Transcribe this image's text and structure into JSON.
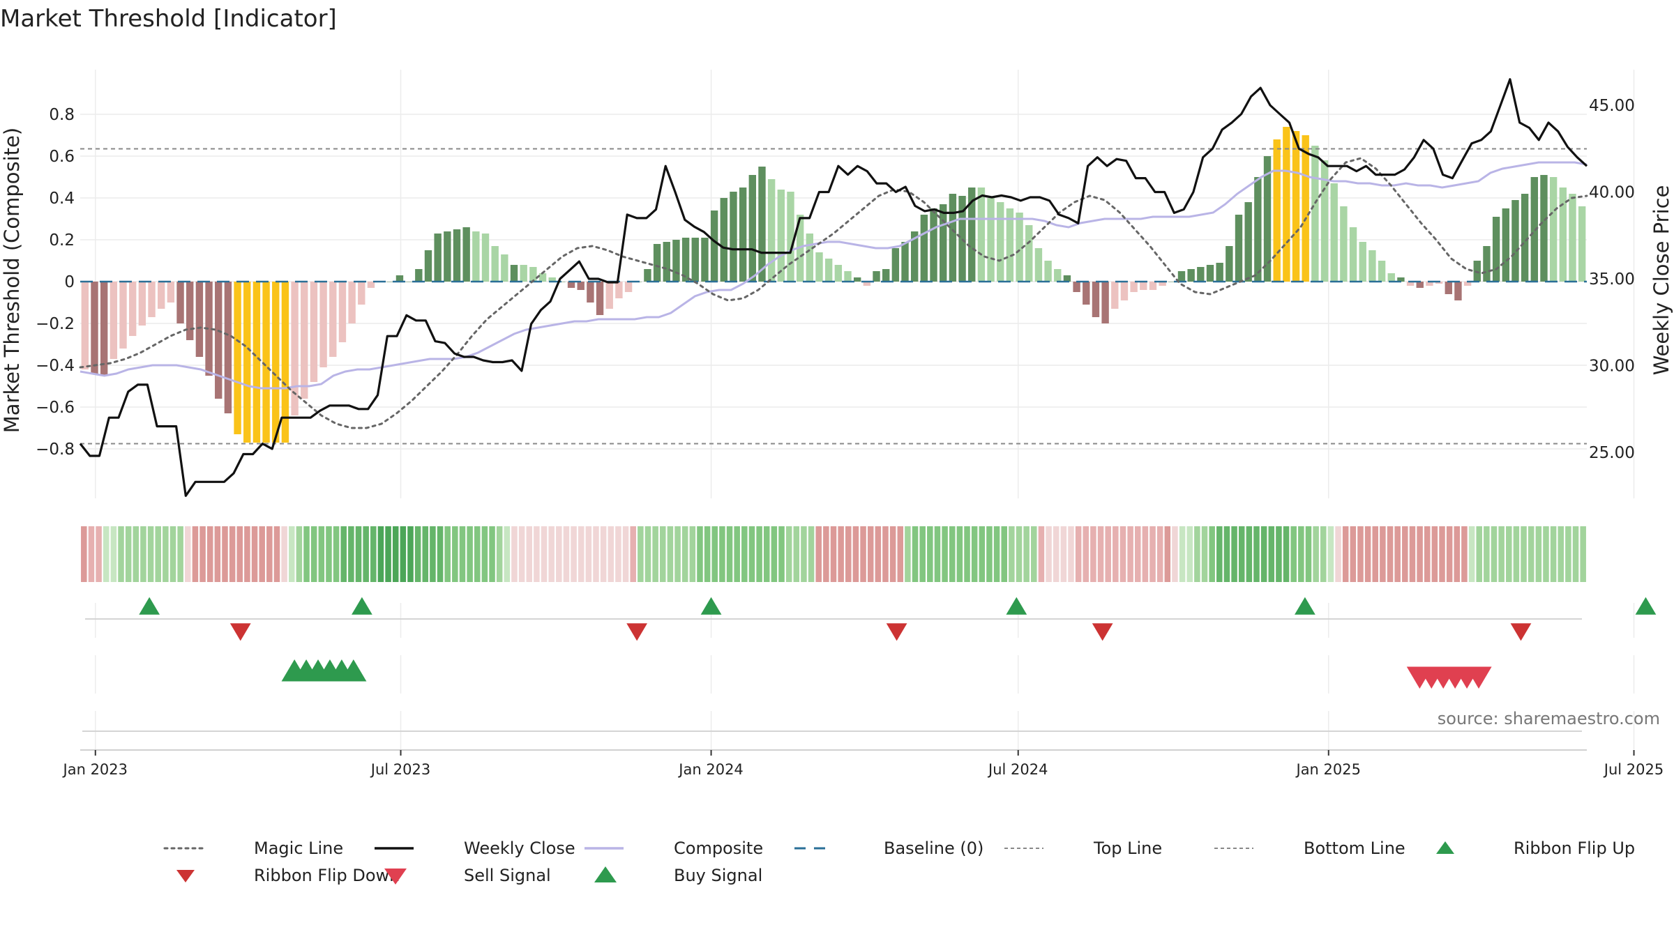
{
  "chart_data": {
    "type": "bar",
    "title": "Market Threshold [Indicator]",
    "ylabel_left": "Market Threshold (Composite)",
    "ylabel_right": "Weekly Close Price",
    "source": "source: sharemaestro.com",
    "x_start": "2022-12-23",
    "x_end": "2025-10-03",
    "ylim_left": [
      -0.85,
      0.8
    ],
    "ylim_right": [
      22.2,
      47.5
    ],
    "left_ticks": [
      {
        "v": 0.8,
        "t": "0.8"
      },
      {
        "v": 0.6,
        "t": "0.6"
      },
      {
        "v": 0.4,
        "t": "0.4"
      },
      {
        "v": 0.2,
        "t": "0.2"
      },
      {
        "v": 0,
        "t": "0"
      },
      {
        "v": -0.2,
        "t": "−0.2"
      },
      {
        "v": -0.4,
        "t": "−0.4"
      },
      {
        "v": -0.6,
        "t": "−0.6"
      },
      {
        "v": -0.8,
        "t": "−0.8"
      }
    ],
    "right_ticks": [
      {
        "v": 45,
        "t": "45.00"
      },
      {
        "v": 40,
        "t": "40.00"
      },
      {
        "v": 35,
        "t": "35.00"
      },
      {
        "v": 30,
        "t": "30.00"
      },
      {
        "v": 25,
        "t": "25.00"
      }
    ],
    "x_ticks": [
      {
        "date": "2023-01-01",
        "t": "Jan 2023"
      },
      {
        "date": "2023-07-01",
        "t": "Jul 2023"
      },
      {
        "date": "2024-01-01",
        "t": "Jan 2024"
      },
      {
        "date": "2024-07-01",
        "t": "Jul 2024"
      },
      {
        "date": "2025-01-01",
        "t": "Jan 2025"
      },
      {
        "date": "2025-07-01",
        "t": "Jul 2025"
      }
    ],
    "top_line": 0.635,
    "bottom_line": -0.775,
    "composite": [
      -0.43,
      -0.44,
      -0.45,
      -0.44,
      -0.42,
      -0.41,
      -0.4,
      -0.4,
      -0.4,
      -0.41,
      -0.42,
      -0.44,
      -0.46,
      -0.48,
      -0.5,
      -0.51,
      -0.51,
      -0.51,
      -0.5,
      -0.5,
      -0.49,
      -0.45,
      -0.43,
      -0.42,
      -0.42,
      -0.41,
      -0.4,
      -0.39,
      -0.38,
      -0.37,
      -0.37,
      -0.37,
      -0.36,
      -0.34,
      -0.31,
      -0.28,
      -0.25,
      -0.23,
      -0.22,
      -0.21,
      -0.2,
      -0.19,
      -0.19,
      -0.18,
      -0.18,
      -0.18,
      -0.18,
      -0.17,
      -0.17,
      -0.15,
      -0.11,
      -0.07,
      -0.05,
      -0.04,
      -0.04,
      -0.01,
      0.03,
      0.08,
      0.12,
      0.15,
      0.17,
      0.18,
      0.19,
      0.19,
      0.18,
      0.17,
      0.16,
      0.16,
      0.17,
      0.2,
      0.23,
      0.26,
      0.28,
      0.3,
      0.3,
      0.3,
      0.3,
      0.3,
      0.3,
      0.3,
      0.29,
      0.27,
      0.26,
      0.28,
      0.29,
      0.3,
      0.3,
      0.3,
      0.3,
      0.31,
      0.31,
      0.31,
      0.31,
      0.32,
      0.33,
      0.37,
      0.42,
      0.46,
      0.5,
      0.53,
      0.53,
      0.52,
      0.5,
      0.49,
      0.48,
      0.48,
      0.47,
      0.47,
      0.46,
      0.46,
      0.47,
      0.46,
      0.46,
      0.45,
      0.46,
      0.47,
      0.48,
      0.52,
      0.54,
      0.55,
      0.56,
      0.57,
      0.57,
      0.57,
      0.57,
      0.56
    ],
    "weekly_close": [
      25.5,
      24.8,
      24.8,
      27.0,
      27.0,
      28.5,
      28.9,
      28.9,
      26.5,
      26.5,
      26.5,
      22.5,
      23.3,
      23.3,
      23.3,
      23.3,
      23.8,
      24.9,
      24.9,
      25.5,
      25.2,
      27.0,
      27.0,
      27.0,
      27.0,
      27.4,
      27.7,
      27.7,
      27.7,
      27.5,
      27.5,
      28.3,
      31.7,
      31.7,
      32.9,
      32.6,
      32.6,
      31.4,
      31.3,
      30.7,
      30.5,
      30.5,
      30.3,
      30.2,
      30.2,
      30.3,
      29.7,
      32.4,
      33.2,
      33.7,
      35.0,
      35.5,
      36.0,
      35.0,
      35.0,
      34.8,
      34.8,
      38.7,
      38.5,
      38.5,
      39.0,
      41.5,
      40.0,
      38.4,
      38.0,
      37.7,
      37.2,
      36.8,
      36.7,
      36.7,
      36.7,
      36.5,
      36.5,
      36.5,
      36.5,
      38.5,
      38.5,
      40.0,
      40.0,
      41.5,
      41.0,
      41.5,
      41.2,
      40.5,
      40.5,
      40.0,
      40.3,
      39.2,
      38.9,
      39.0,
      38.8,
      38.8,
      38.9,
      39.5,
      39.8,
      39.7,
      39.8,
      39.7,
      39.5,
      39.7,
      39.7,
      39.5,
      38.7,
      38.5,
      38.2,
      41.5,
      42.0,
      41.5,
      41.9,
      41.8,
      40.8,
      40.8,
      40.0,
      40.0,
      38.8,
      39.0,
      40.0,
      42.0,
      42.5,
      43.6,
      44.0,
      44.5,
      45.5,
      46.0,
      45.0,
      44.5,
      44.0,
      42.5,
      42.2,
      42.0,
      41.5,
      41.5,
      41.5,
      41.2,
      41.5,
      41.0,
      41.0,
      41.0,
      41.3,
      42.0,
      43.0,
      42.5,
      41.0,
      40.8,
      41.8,
      42.8,
      43.0,
      43.5,
      45.0,
      46.5,
      44.0,
      43.7,
      43.0,
      44.0,
      43.5,
      42.6,
      42.0,
      41.5
    ],
    "close_ylim": [
      22.2,
      47.5
    ],
    "magic_line": [
      -0.41,
      -0.4,
      -0.39,
      -0.37,
      -0.34,
      -0.3,
      -0.26,
      -0.23,
      -0.22,
      -0.23,
      -0.26,
      -0.31,
      -0.38,
      -0.45,
      -0.52,
      -0.58,
      -0.64,
      -0.68,
      -0.7,
      -0.7,
      -0.68,
      -0.63,
      -0.57,
      -0.5,
      -0.43,
      -0.35,
      -0.26,
      -0.18,
      -0.12,
      -0.06,
      0.0,
      0.06,
      0.12,
      0.16,
      0.17,
      0.15,
      0.12,
      0.1,
      0.08,
      0.06,
      0.03,
      -0.01,
      -0.06,
      -0.09,
      -0.08,
      -0.04,
      0.02,
      0.08,
      0.13,
      0.18,
      0.23,
      0.29,
      0.35,
      0.41,
      0.44,
      0.43,
      0.38,
      0.31,
      0.24,
      0.17,
      0.12,
      0.1,
      0.13,
      0.19,
      0.26,
      0.33,
      0.38,
      0.41,
      0.39,
      0.33,
      0.25,
      0.17,
      0.08,
      -0.01,
      -0.05,
      -0.06,
      -0.03,
      0.0,
      0.03,
      0.1,
      0.18,
      0.26,
      0.38,
      0.49,
      0.57,
      0.59,
      0.54,
      0.46,
      0.37,
      0.28,
      0.2,
      0.11,
      0.06,
      0.04,
      0.06,
      0.12,
      0.2,
      0.28,
      0.35,
      0.4,
      0.41
    ],
    "bars": [
      -0.42,
      -0.44,
      -0.45,
      -0.37,
      -0.32,
      -0.26,
      -0.21,
      -0.17,
      -0.13,
      -0.1,
      -0.2,
      -0.28,
      -0.36,
      -0.45,
      -0.56,
      -0.63,
      -0.73,
      -0.77,
      -0.77,
      -0.77,
      -0.77,
      -0.77,
      -0.64,
      -0.56,
      -0.48,
      -0.41,
      -0.36,
      -0.29,
      -0.2,
      -0.11,
      -0.03,
      0.0,
      0.0,
      0.03,
      0.0,
      0.06,
      0.15,
      0.23,
      0.24,
      0.25,
      0.26,
      0.24,
      0.23,
      0.17,
      0.13,
      0.08,
      0.08,
      0.07,
      0.04,
      0.02,
      0.0,
      -0.03,
      -0.04,
      -0.1,
      -0.16,
      -0.13,
      -0.08,
      -0.05,
      0.0,
      0.06,
      0.18,
      0.19,
      0.2,
      0.21,
      0.21,
      0.21,
      0.34,
      0.4,
      0.43,
      0.45,
      0.51,
      0.55,
      0.49,
      0.44,
      0.43,
      0.32,
      0.23,
      0.14,
      0.11,
      0.08,
      0.05,
      0.02,
      -0.02,
      0.05,
      0.06,
      0.16,
      0.19,
      0.24,
      0.32,
      0.35,
      0.37,
      0.42,
      0.41,
      0.45,
      0.45,
      0.4,
      0.38,
      0.35,
      0.33,
      0.27,
      0.16,
      0.1,
      0.06,
      0.03,
      -0.05,
      -0.11,
      -0.17,
      -0.2,
      -0.13,
      -0.09,
      -0.05,
      -0.04,
      -0.04,
      -0.02,
      0.0,
      0.05,
      0.06,
      0.07,
      0.08,
      0.09,
      0.17,
      0.32,
      0.38,
      0.5,
      0.6,
      0.68,
      0.74,
      0.72,
      0.7,
      0.65,
      0.58,
      0.47,
      0.36,
      0.26,
      0.19,
      0.15,
      0.1,
      0.04,
      0.02,
      -0.02,
      -0.03,
      -0.02,
      -0.01,
      -0.06,
      -0.09,
      -0.02,
      0.1,
      0.17,
      0.31,
      0.35,
      0.39,
      0.42,
      0.5,
      0.51,
      0.5,
      0.45,
      0.42,
      0.36
    ],
    "ribbon": [
      -3,
      -2,
      -2,
      1,
      1,
      2,
      2,
      2,
      2,
      2,
      2,
      2,
      2,
      2,
      -1,
      -3,
      -3,
      -3,
      -3,
      -3,
      -3,
      -3,
      -3,
      -3,
      -3,
      -3,
      -3,
      -1,
      1,
      2,
      3,
      3,
      3,
      3,
      3,
      4,
      4,
      4,
      4,
      4,
      5,
      5,
      5,
      5,
      5,
      4,
      4,
      4,
      4,
      3,
      3,
      3,
      3,
      3,
      3,
      3,
      2,
      1,
      -1,
      -1,
      -1,
      -1,
      -1,
      -1,
      -1,
      -1,
      -1,
      -1,
      -1,
      -1,
      -1,
      -1,
      -1,
      -1,
      -2,
      2,
      2,
      2,
      2,
      2,
      2,
      2,
      2,
      3,
      3,
      3,
      3,
      3,
      3,
      3,
      3,
      3,
      3,
      3,
      3,
      2,
      2,
      2,
      2,
      -3,
      -3,
      -3,
      -3,
      -3,
      -3,
      -3,
      -3,
      -3,
      -3,
      -3,
      -3,
      2,
      3,
      3,
      3,
      3,
      3,
      3,
      3,
      3,
      3,
      3,
      3,
      3,
      3,
      2,
      2,
      2,
      2,
      -2,
      -1,
      -1,
      -1,
      -1,
      -2,
      -2,
      -2,
      -2,
      -2,
      -2,
      -2,
      -2,
      -2,
      -2,
      -2,
      -2,
      -3,
      -1,
      1,
      1,
      2,
      2,
      3,
      4,
      4,
      4,
      4,
      4,
      4,
      4,
      4,
      4,
      4,
      3,
      3,
      3,
      2,
      2,
      1,
      -1,
      -3,
      -3,
      -3,
      -3,
      -3,
      -3,
      -3,
      -3,
      -3,
      -3,
      -3,
      -3,
      -3,
      -3,
      -3,
      -3,
      -3,
      1,
      2,
      2,
      2,
      2,
      2,
      2,
      2,
      2,
      2,
      2,
      2,
      2,
      2,
      2,
      2
    ],
    "ribbon_flip_up": [
      "2023-02-02",
      "2023-06-08",
      "2024-01-01",
      "2024-06-30",
      "2024-12-18",
      "2025-07-08"
    ],
    "ribbon_flip_down": [
      "2023-03-28",
      "2023-11-18",
      "2024-04-20",
      "2024-08-20",
      "2025-04-25"
    ],
    "buy_signal": [
      "2023-04-29",
      "2023-05-06",
      "2023-05-13",
      "2023-05-20",
      "2023-05-27",
      "2023-06-03"
    ],
    "sell_signal": [
      "2025-02-24",
      "2025-03-03",
      "2025-03-10",
      "2025-03-17",
      "2025-03-24",
      "2025-03-31"
    ],
    "legend": [
      {
        "key": "magic",
        "label": "Magic Line"
      },
      {
        "key": "close",
        "label": "Weekly Close"
      },
      {
        "key": "composite",
        "label": "Composite"
      },
      {
        "key": "baseline",
        "label": "Baseline (0)"
      },
      {
        "key": "top",
        "label": "Top Line"
      },
      {
        "key": "bottom",
        "label": "Bottom Line"
      },
      {
        "key": "flipup",
        "label": "Ribbon Flip Up"
      },
      {
        "key": "flipdown",
        "label": "Ribbon Flip Down"
      },
      {
        "key": "sell",
        "label": "Sell Signal"
      },
      {
        "key": "buy",
        "label": "Buy Signal"
      }
    ],
    "colors": {
      "pos_dark": "#5e8f5e",
      "pos_light": "#a9d5a5",
      "neg_dark": "#a87474",
      "neg_light": "#ecc2c0",
      "extreme": "#fac319",
      "close": "#111111",
      "composite": "#b9b4e6",
      "magic": "#666666",
      "baseline": "#2a6f97",
      "threshold": "#888888",
      "flip_up": "#2e9a4e",
      "flip_down": "#cc3333",
      "buy": "#2e9a4e",
      "sell": "#e04050"
    }
  }
}
